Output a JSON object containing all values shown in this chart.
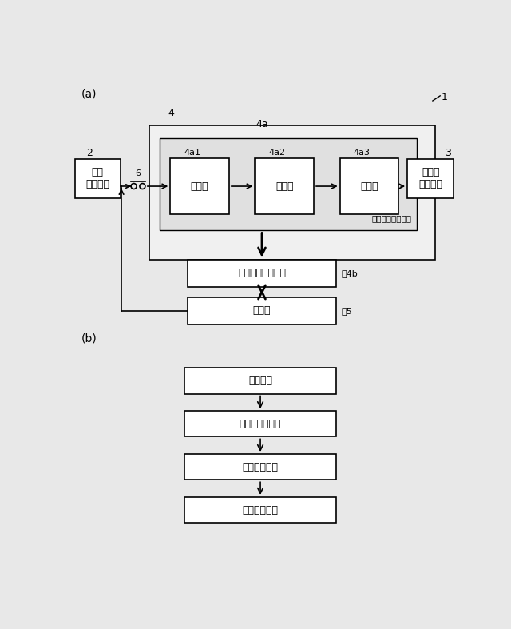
{
  "bg_color": "#e8e8e8",
  "box_bg": "#ffffff",
  "box_edge": "#000000",
  "label_a": "(a)",
  "label_b": "(b)",
  "label_1": "1",
  "label_2": "2",
  "label_3": "3",
  "label_4": "4",
  "label_4a": "4a",
  "label_4b": "～4b",
  "label_5": "～5",
  "label_6": "6",
  "box_kouatsu": "高圧\nバッテリ",
  "box_hoki": "補機用\nバッテリ",
  "box_input": "入力部",
  "box_step": "降圧部",
  "box_rect": "整流部",
  "box_conv_ctrl": "コンバータ制御部",
  "box_ecu": "ＥＣＵ",
  "label_conv_circuit": "コンバ－タ回路部",
  "box_b1": "検出機能",
  "box_b2": "異常仕判定機能",
  "box_b3": "異常判定機能",
  "box_b4": "動作制御機能"
}
